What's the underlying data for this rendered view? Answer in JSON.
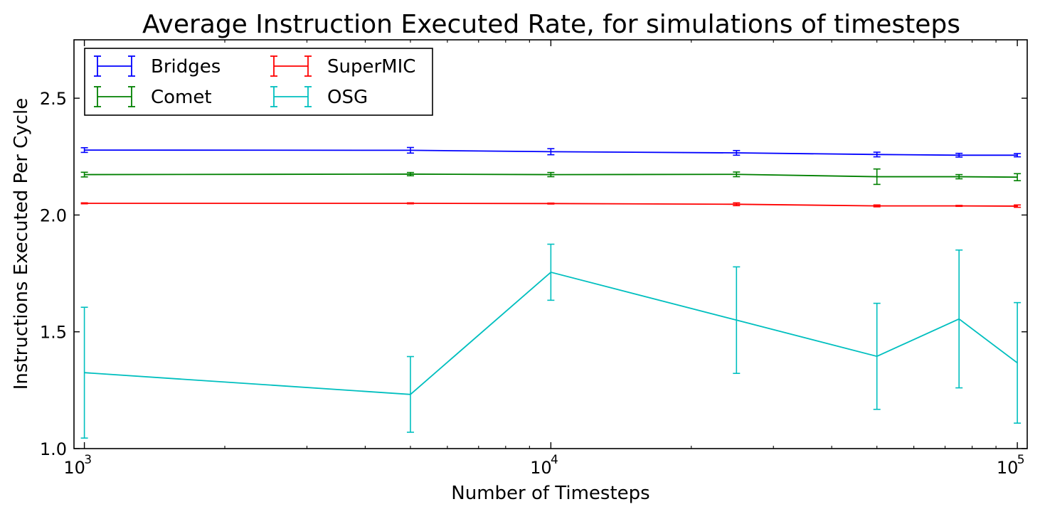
{
  "chart_data": {
    "type": "line",
    "title": "Average Instruction Executed Rate, for simulations of timesteps",
    "xlabel": "Number of Timesteps",
    "ylabel": "Instructions Executed Per Cycle",
    "xscale": "log",
    "xlim": [
      950,
      105000
    ],
    "ylim": [
      1.0,
      2.75
    ],
    "x_ticks": [
      {
        "value": 1000,
        "base": "10",
        "exp": "3"
      },
      {
        "value": 10000,
        "base": "10",
        "exp": "4"
      },
      {
        "value": 100000,
        "base": "10",
        "exp": "5"
      }
    ],
    "y_ticks": [
      {
        "value": 1.0,
        "label": "1.0"
      },
      {
        "value": 1.5,
        "label": "1.5"
      },
      {
        "value": 2.0,
        "label": "2.0"
      },
      {
        "value": 2.5,
        "label": "2.5"
      }
    ],
    "grid": false,
    "legend": {
      "location": "upper-left",
      "columns": 2
    },
    "x": [
      1000,
      5000,
      10000,
      25000,
      50000,
      75000,
      100000
    ],
    "series": [
      {
        "name": "Bridges",
        "color": "#0000ff",
        "values": [
          2.278,
          2.277,
          2.271,
          2.266,
          2.259,
          2.256,
          2.256
        ],
        "errors": [
          0.01,
          0.012,
          0.013,
          0.01,
          0.01,
          0.008,
          0.007
        ]
      },
      {
        "name": "Comet",
        "color": "#008000",
        "values": [
          2.173,
          2.175,
          2.173,
          2.174,
          2.164,
          2.164,
          2.162
        ],
        "errors": [
          0.01,
          0.007,
          0.009,
          0.01,
          0.033,
          0.009,
          0.015
        ]
      },
      {
        "name": "SuperMIC",
        "color": "#ff0000",
        "values": [
          2.05,
          2.05,
          2.049,
          2.046,
          2.039,
          2.039,
          2.038
        ],
        "errors": [
          0.002,
          0.002,
          0.002,
          0.006,
          0.004,
          0.002,
          0.005
        ]
      },
      {
        "name": "OSG",
        "color": "#00bfbf",
        "values": [
          1.325,
          1.232,
          1.755,
          1.55,
          1.395,
          1.555,
          1.367
        ],
        "errors": [
          0.28,
          0.162,
          0.12,
          0.228,
          0.227,
          0.295,
          0.258
        ]
      }
    ]
  }
}
